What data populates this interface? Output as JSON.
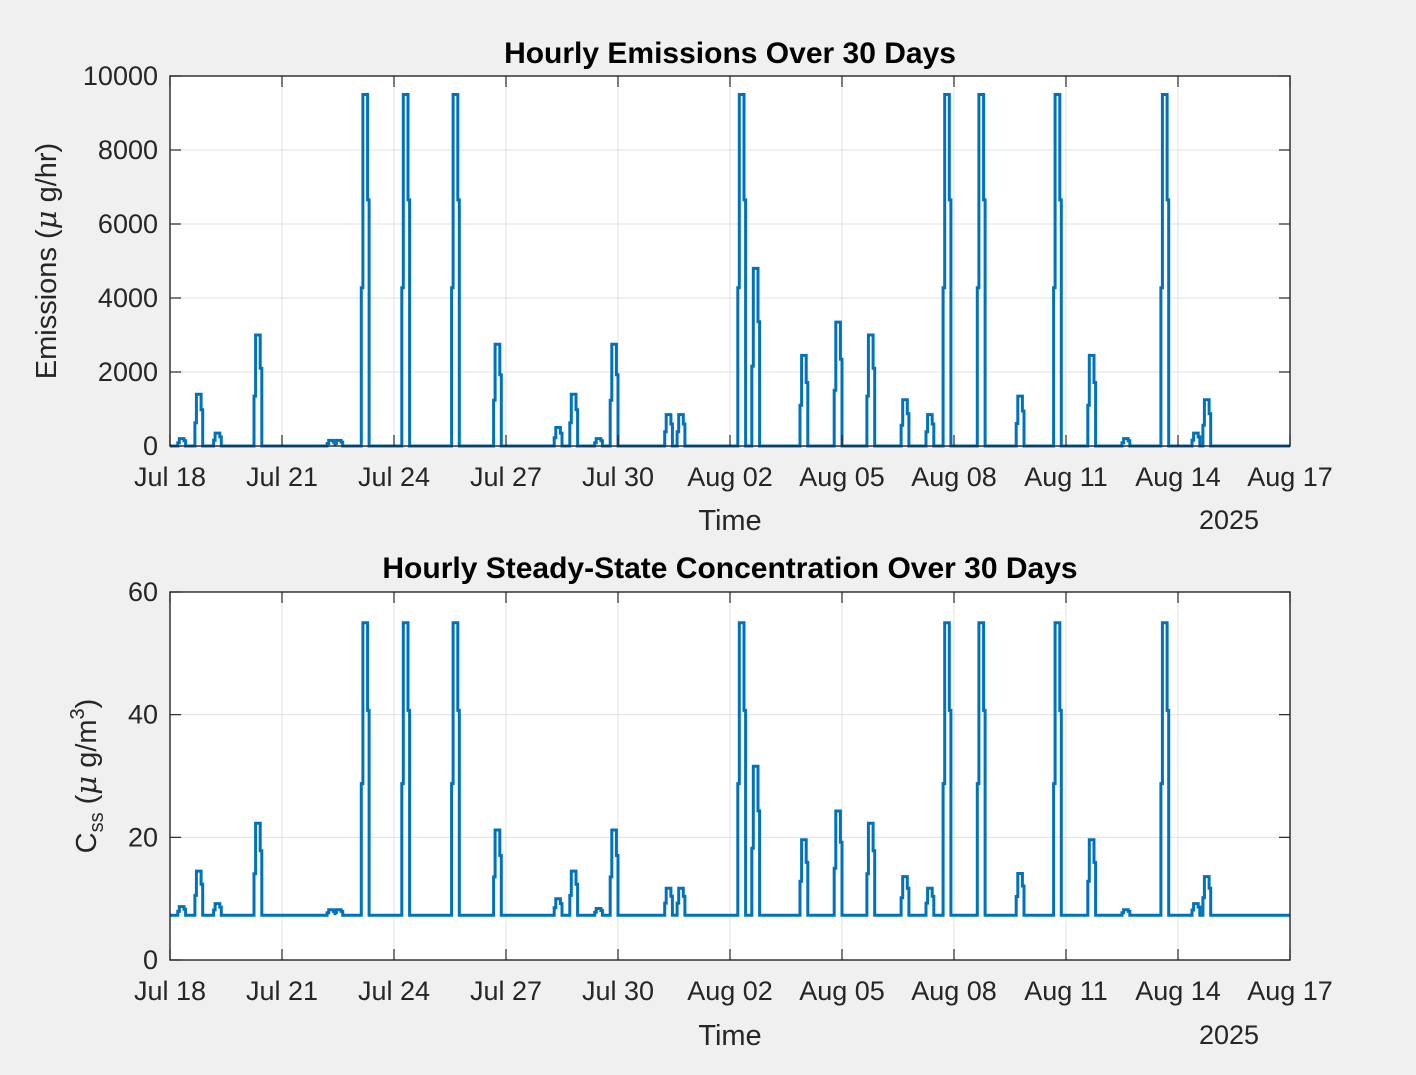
{
  "figure": {
    "background": "#f0f0f0",
    "axes_background": "#ffffff",
    "grid_color": "#e0e0e0",
    "line_color": "#0072bd"
  },
  "chart_data": [
    {
      "type": "line",
      "title": "Hourly Emissions Over 30 Days",
      "xlabel": "Time",
      "ylabel": "Emissions (μ g/hr)",
      "ylabel_parts": {
        "pre": "Emissions (",
        "mu": "μ",
        "post": " g/hr)"
      },
      "year_label": "2025",
      "x_ticks": [
        "Jul 18",
        "Jul 21",
        "Jul 24",
        "Jul 27",
        "Jul 30",
        "Aug 02",
        "Aug 05",
        "Aug 08",
        "Aug 11",
        "Aug 14",
        "Aug 17"
      ],
      "xlim": [
        "2025-07-18",
        "2025-08-17"
      ],
      "y_ticks": [
        "0",
        "2000",
        "4000",
        "6000",
        "8000",
        "10000"
      ],
      "ylim": [
        0,
        10000
      ],
      "grid": true,
      "baseline": 0,
      "series": [
        {
          "events": [
            {
              "t": "2025-07-18 07:00",
              "peak": 200
            },
            {
              "t": "2025-07-18 18:00",
              "peak": 1400
            },
            {
              "t": "2025-07-19 06:00",
              "peak": 350
            },
            {
              "t": "2025-07-20 08:00",
              "peak": 3000
            },
            {
              "t": "2025-07-22 07:00",
              "peak": 150
            },
            {
              "t": "2025-07-22 12:00",
              "peak": 150
            },
            {
              "t": "2025-07-23 05:00",
              "peak": 9500
            },
            {
              "t": "2025-07-24 07:00",
              "peak": 9500
            },
            {
              "t": "2025-07-25 15:00",
              "peak": 9500
            },
            {
              "t": "2025-07-26 18:00",
              "peak": 2750
            },
            {
              "t": "2025-07-28 09:00",
              "peak": 500
            },
            {
              "t": "2025-07-28 19:00",
              "peak": 1400
            },
            {
              "t": "2025-07-29 11:00",
              "peak": 200
            },
            {
              "t": "2025-07-29 21:00",
              "peak": 2750
            },
            {
              "t": "2025-07-31 08:00",
              "peak": 850
            },
            {
              "t": "2025-07-31 16:00",
              "peak": 850
            },
            {
              "t": "2025-08-02 07:00",
              "peak": 9500
            },
            {
              "t": "2025-08-02 16:00",
              "peak": 4800
            },
            {
              "t": "2025-08-03 23:00",
              "peak": 2450
            },
            {
              "t": "2025-08-04 21:00",
              "peak": 3350
            },
            {
              "t": "2025-08-05 18:00",
              "peak": 3000
            },
            {
              "t": "2025-08-06 16:00",
              "peak": 1250
            },
            {
              "t": "2025-08-07 08:00",
              "peak": 850
            },
            {
              "t": "2025-08-07 19:00",
              "peak": 9500
            },
            {
              "t": "2025-08-08 17:00",
              "peak": 9500
            },
            {
              "t": "2025-08-09 18:00",
              "peak": 1350
            },
            {
              "t": "2025-08-10 18:00",
              "peak": 9500
            },
            {
              "t": "2025-08-11 16:00",
              "peak": 2450
            },
            {
              "t": "2025-08-12 14:00",
              "peak": 200
            },
            {
              "t": "2025-08-13 15:00",
              "peak": 9500
            },
            {
              "t": "2025-08-14 11:00",
              "peak": 350
            },
            {
              "t": "2025-08-14 18:00",
              "peak": 1250
            }
          ]
        }
      ]
    },
    {
      "type": "line",
      "title": "Hourly Steady-State Concentration Over 30 Days",
      "xlabel": "Time",
      "ylabel": "Css (μ g/m3)",
      "ylabel_parts": {
        "main": "C",
        "sub": "ss",
        "pre": " (",
        "mu": "μ",
        "mid": " g/m",
        "sup": "3",
        "post": ")"
      },
      "year_label": "2025",
      "x_ticks": [
        "Jul 18",
        "Jul 21",
        "Jul 24",
        "Jul 27",
        "Jul 30",
        "Aug 02",
        "Aug 05",
        "Aug 08",
        "Aug 11",
        "Aug 14",
        "Aug 17"
      ],
      "xlim": [
        "2025-07-18",
        "2025-08-17"
      ],
      "y_ticks": [
        "0",
        "20",
        "40",
        "60"
      ],
      "ylim": [
        0,
        60
      ],
      "grid": true,
      "baseline": 7.3,
      "series": [
        {
          "events": [
            {
              "t": "2025-07-18 07:00",
              "peak": 8.7
            },
            {
              "t": "2025-07-18 18:00",
              "peak": 14.5
            },
            {
              "t": "2025-07-19 06:00",
              "peak": 9.2
            },
            {
              "t": "2025-07-20 08:00",
              "peak": 22.3
            },
            {
              "t": "2025-07-22 07:00",
              "peak": 8.2
            },
            {
              "t": "2025-07-22 12:00",
              "peak": 8.2
            },
            {
              "t": "2025-07-23 05:00",
              "peak": 55
            },
            {
              "t": "2025-07-24 07:00",
              "peak": 55
            },
            {
              "t": "2025-07-25 15:00",
              "peak": 55
            },
            {
              "t": "2025-07-26 18:00",
              "peak": 21.2
            },
            {
              "t": "2025-07-28 09:00",
              "peak": 10
            },
            {
              "t": "2025-07-28 19:00",
              "peak": 14.5
            },
            {
              "t": "2025-07-29 11:00",
              "peak": 8.4
            },
            {
              "t": "2025-07-29 21:00",
              "peak": 21.2
            },
            {
              "t": "2025-07-31 08:00",
              "peak": 11.7
            },
            {
              "t": "2025-07-31 16:00",
              "peak": 11.7
            },
            {
              "t": "2025-08-02 07:00",
              "peak": 55
            },
            {
              "t": "2025-08-02 16:00",
              "peak": 31.6
            },
            {
              "t": "2025-08-03 23:00",
              "peak": 19.6
            },
            {
              "t": "2025-08-04 21:00",
              "peak": 24.3
            },
            {
              "t": "2025-08-05 18:00",
              "peak": 22.3
            },
            {
              "t": "2025-08-06 16:00",
              "peak": 13.6
            },
            {
              "t": "2025-08-07 08:00",
              "peak": 11.7
            },
            {
              "t": "2025-08-07 19:00",
              "peak": 55
            },
            {
              "t": "2025-08-08 17:00",
              "peak": 55
            },
            {
              "t": "2025-08-09 18:00",
              "peak": 14.1
            },
            {
              "t": "2025-08-10 18:00",
              "peak": 55
            },
            {
              "t": "2025-08-11 16:00",
              "peak": 19.6
            },
            {
              "t": "2025-08-12 14:00",
              "peak": 8.2
            },
            {
              "t": "2025-08-13 15:00",
              "peak": 55
            },
            {
              "t": "2025-08-14 11:00",
              "peak": 9.2
            },
            {
              "t": "2025-08-14 18:00",
              "peak": 13.6
            }
          ]
        }
      ]
    }
  ]
}
